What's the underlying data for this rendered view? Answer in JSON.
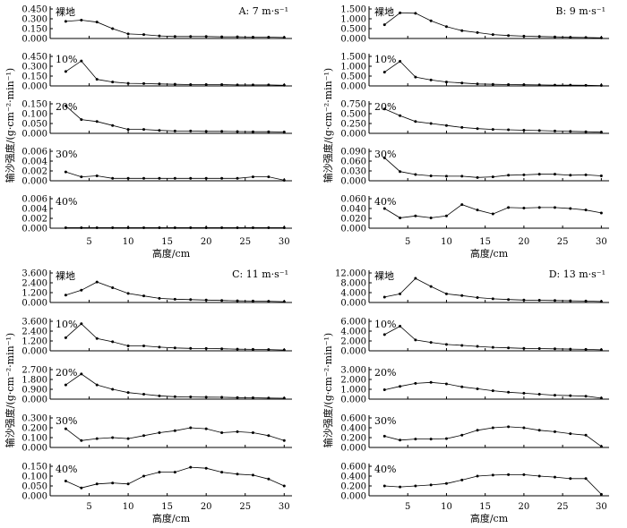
{
  "chart_data": [
    {
      "type": "line",
      "title": "A: 7 m·s⁻¹",
      "xlabel": "高度/cm",
      "ylabel": "输沙强度/(g·cm⁻²·min⁻¹)",
      "x_ticks": [
        5,
        10,
        15,
        20,
        25,
        30
      ],
      "x": [
        2,
        4,
        6,
        8,
        10,
        12,
        14,
        16,
        18,
        20,
        22,
        24,
        26,
        28,
        30
      ],
      "subplots": [
        {
          "label": "裸地",
          "yticks": [
            "0.000",
            "0.150",
            "0.300",
            "0.450"
          ],
          "ylim": [
            0,
            0.45
          ],
          "values": [
            0.26,
            0.28,
            0.25,
            0.15,
            0.07,
            0.06,
            0.04,
            0.03,
            0.03,
            0.03,
            0.025,
            0.025,
            0.02,
            0.02,
            0.015
          ]
        },
        {
          "label": "10%",
          "yticks": [
            "0.000",
            "0.150",
            "0.300",
            "0.450"
          ],
          "ylim": [
            0,
            0.45
          ],
          "values": [
            0.22,
            0.38,
            0.1,
            0.06,
            0.04,
            0.035,
            0.03,
            0.025,
            0.02,
            0.02,
            0.02,
            0.015,
            0.015,
            0.015,
            0.01
          ]
        },
        {
          "label": "20%",
          "yticks": [
            "0.000",
            "0.050",
            "0.100",
            "0.150"
          ],
          "ylim": [
            0,
            0.15
          ],
          "values": [
            0.14,
            0.07,
            0.06,
            0.04,
            0.02,
            0.02,
            0.015,
            0.012,
            0.012,
            0.01,
            0.01,
            0.009,
            0.008,
            0.008,
            0.007
          ]
        },
        {
          "label": "30%",
          "yticks": [
            "0.000",
            "0.002",
            "0.004",
            "0.006"
          ],
          "ylim": [
            0,
            0.006
          ],
          "values": [
            0.0018,
            0.0008,
            0.001,
            0.0005,
            0.0005,
            0.0005,
            0.0005,
            0.0005,
            0.0005,
            0.0005,
            0.0005,
            0.0005,
            0.0008,
            0.0008,
            0.0001
          ]
        },
        {
          "label": "40%",
          "yticks": [
            "0.000",
            "0.002",
            "0.004",
            "0.006"
          ],
          "ylim": [
            0,
            0.006
          ],
          "values": [
            0.0001,
            0.0001,
            0.0001,
            0.0001,
            0.0001,
            0.0001,
            0.0001,
            0.0001,
            0.0001,
            0.0001,
            0.0001,
            0.0001,
            0.0001,
            0.0001,
            0.0001
          ]
        }
      ]
    },
    {
      "type": "line",
      "title": "B: 9 m·s⁻¹",
      "xlabel": "高度/cm",
      "ylabel": "输沙强度/(g·cm⁻²·min⁻¹)",
      "x_ticks": [
        5,
        10,
        15,
        20,
        25,
        30
      ],
      "x": [
        2,
        4,
        6,
        8,
        10,
        12,
        14,
        16,
        18,
        20,
        22,
        24,
        26,
        28,
        30
      ],
      "subplots": [
        {
          "label": "裸地",
          "yticks": [
            "0.000",
            "0.500",
            "1.000",
            "1.500"
          ],
          "ylim": [
            0,
            1.5
          ],
          "values": [
            0.7,
            1.3,
            1.28,
            0.9,
            0.6,
            0.4,
            0.3,
            0.2,
            0.15,
            0.12,
            0.1,
            0.08,
            0.06,
            0.05,
            0.03
          ]
        },
        {
          "label": "10%",
          "yticks": [
            "0.000",
            "0.500",
            "1.000",
            "1.500"
          ],
          "ylim": [
            0,
            1.5
          ],
          "values": [
            0.7,
            1.25,
            0.45,
            0.3,
            0.2,
            0.15,
            0.1,
            0.08,
            0.07,
            0.06,
            0.05,
            0.04,
            0.04,
            0.03,
            0.02
          ]
        },
        {
          "label": "20%",
          "yticks": [
            "0.000",
            "0.250",
            "0.500",
            "0.750"
          ],
          "ylim": [
            0,
            0.75
          ],
          "values": [
            0.62,
            0.45,
            0.3,
            0.25,
            0.2,
            0.15,
            0.12,
            0.1,
            0.09,
            0.08,
            0.07,
            0.06,
            0.05,
            0.04,
            0.03
          ]
        },
        {
          "label": "30%",
          "yticks": [
            "0.000",
            "0.030",
            "0.060",
            "0.090"
          ],
          "ylim": [
            0,
            0.09
          ],
          "values": [
            0.07,
            0.028,
            0.019,
            0.015,
            0.014,
            0.014,
            0.01,
            0.012,
            0.017,
            0.018,
            0.02,
            0.02,
            0.017,
            0.018,
            0.015
          ]
        },
        {
          "label": "40%",
          "yticks": [
            "0.000",
            "0.020",
            "0.040",
            "0.060"
          ],
          "ylim": [
            0,
            0.06
          ],
          "values": [
            0.04,
            0.021,
            0.025,
            0.021,
            0.025,
            0.048,
            0.037,
            0.029,
            0.042,
            0.041,
            0.042,
            0.042,
            0.04,
            0.037,
            0.031
          ]
        }
      ]
    },
    {
      "type": "line",
      "title": "C: 11 m·s⁻¹",
      "xlabel": "高度/cm",
      "ylabel": "输沙强度/(g·cm⁻²·min⁻¹)",
      "x_ticks": [
        5,
        10,
        15,
        20,
        25,
        30
      ],
      "x": [
        2,
        4,
        6,
        8,
        10,
        12,
        14,
        16,
        18,
        20,
        22,
        24,
        26,
        28,
        30
      ],
      "subplots": [
        {
          "label": "裸地",
          "yticks": [
            "0.000",
            "1.200",
            "2.400",
            "3.600"
          ],
          "ylim": [
            0,
            3.6
          ],
          "values": [
            0.9,
            1.5,
            2.5,
            1.8,
            1.1,
            0.8,
            0.5,
            0.4,
            0.35,
            0.3,
            0.25,
            0.2,
            0.18,
            0.15,
            0.1
          ]
        },
        {
          "label": "10%",
          "yticks": [
            "0.000",
            "1.200",
            "2.400",
            "3.600"
          ],
          "ylim": [
            0,
            3.6
          ],
          "values": [
            1.6,
            3.3,
            1.5,
            1.1,
            0.6,
            0.6,
            0.45,
            0.35,
            0.3,
            0.28,
            0.25,
            0.2,
            0.18,
            0.15,
            0.1
          ]
        },
        {
          "label": "20%",
          "yticks": [
            "0.000",
            "0.900",
            "1.800",
            "2.700"
          ],
          "ylim": [
            0,
            2.7
          ],
          "values": [
            1.3,
            2.3,
            1.3,
            0.9,
            0.6,
            0.45,
            0.3,
            0.22,
            0.2,
            0.18,
            0.17,
            0.14,
            0.12,
            0.1,
            0.08
          ]
        },
        {
          "label": "30%",
          "yticks": [
            "0.000",
            "0.100",
            "0.200",
            "0.300"
          ],
          "ylim": [
            0,
            0.3
          ],
          "values": [
            0.19,
            0.07,
            0.09,
            0.1,
            0.09,
            0.12,
            0.15,
            0.17,
            0.2,
            0.19,
            0.15,
            0.16,
            0.15,
            0.12,
            0.07
          ]
        },
        {
          "label": "40%",
          "yticks": [
            "0.000",
            "0.050",
            "0.100",
            "0.150"
          ],
          "ylim": [
            0,
            0.15
          ],
          "values": [
            0.075,
            0.04,
            0.06,
            0.065,
            0.06,
            0.1,
            0.12,
            0.12,
            0.145,
            0.14,
            0.12,
            0.11,
            0.105,
            0.085,
            0.05
          ]
        }
      ]
    },
    {
      "type": "line",
      "title": "D: 13 m·s⁻¹",
      "xlabel": "高度/cm",
      "ylabel": "输沙强度/(g·cm⁻²·min⁻¹)",
      "x_ticks": [
        5,
        10,
        15,
        20,
        25,
        30
      ],
      "x": [
        2,
        4,
        6,
        8,
        10,
        12,
        14,
        16,
        18,
        20,
        22,
        24,
        26,
        28,
        30
      ],
      "subplots": [
        {
          "label": "裸地",
          "yticks": [
            "0.000",
            "4.000",
            "8.000",
            "12.000"
          ],
          "ylim": [
            0,
            12
          ],
          "values": [
            2.2,
            3.5,
            9.8,
            6.5,
            3.5,
            2.8,
            2.0,
            1.5,
            1.2,
            1.0,
            0.9,
            0.8,
            0.7,
            0.6,
            0.4
          ]
        },
        {
          "label": "10%",
          "yticks": [
            "0.000",
            "2.000",
            "4.000",
            "6.000"
          ],
          "ylim": [
            0,
            6
          ],
          "values": [
            3.3,
            5.0,
            2.2,
            1.7,
            1.3,
            1.1,
            0.9,
            0.7,
            0.6,
            0.5,
            0.45,
            0.4,
            0.35,
            0.3,
            0.2
          ]
        },
        {
          "label": "20%",
          "yticks": [
            "0.000",
            "1.000",
            "2.000",
            "3.000"
          ],
          "ylim": [
            0,
            3
          ],
          "values": [
            0.95,
            1.3,
            1.6,
            1.7,
            1.55,
            1.25,
            1.05,
            0.85,
            0.7,
            0.6,
            0.5,
            0.4,
            0.35,
            0.3,
            0.1
          ]
        },
        {
          "label": "30%",
          "yticks": [
            "0.000",
            "0.200",
            "0.400",
            "0.600"
          ],
          "ylim": [
            0,
            0.6
          ],
          "values": [
            0.23,
            0.15,
            0.17,
            0.17,
            0.18,
            0.25,
            0.35,
            0.4,
            0.42,
            0.4,
            0.35,
            0.32,
            0.28,
            0.25,
            0.02
          ]
        },
        {
          "label": "40%",
          "yticks": [
            "0.000",
            "0.200",
            "0.400",
            "0.600"
          ],
          "ylim": [
            0,
            0.6
          ],
          "values": [
            0.2,
            0.18,
            0.2,
            0.22,
            0.25,
            0.32,
            0.4,
            0.42,
            0.43,
            0.43,
            0.4,
            0.38,
            0.35,
            0.35,
            0.03
          ]
        }
      ]
    }
  ]
}
